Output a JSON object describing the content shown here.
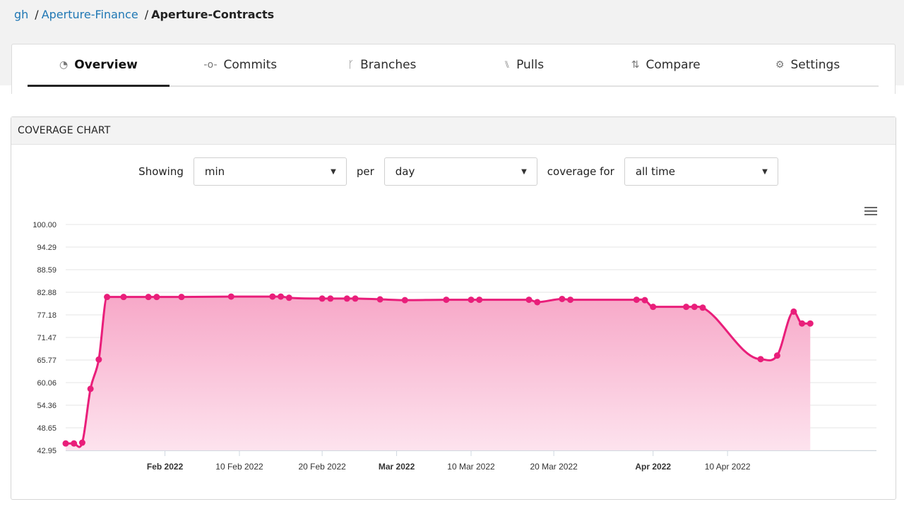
{
  "breadcrumb": {
    "items": [
      "gh",
      "Aperture-Finance"
    ],
    "current": "Aperture-Contracts",
    "separator": "/"
  },
  "tabs": [
    {
      "label": "Overview",
      "icon": "dashboard-icon",
      "glyph": "◔",
      "active": true
    },
    {
      "label": "Commits",
      "icon": "commit-icon",
      "glyph": "-o-",
      "active": false
    },
    {
      "label": "Branches",
      "icon": "branch-icon",
      "glyph": "ᚴ",
      "active": false
    },
    {
      "label": "Pulls",
      "icon": "pull-request-icon",
      "glyph": "⑊",
      "active": false
    },
    {
      "label": "Compare",
      "icon": "compare-icon",
      "glyph": "⇅",
      "active": false
    },
    {
      "label": "Settings",
      "icon": "gear-icon",
      "glyph": "⚙",
      "active": false
    }
  ],
  "panel": {
    "title": "COVERAGE CHART"
  },
  "controls": {
    "showing_label": "Showing",
    "metric_value": "min",
    "per_label": "per",
    "interval_value": "day",
    "coverage_label": "coverage for",
    "range_value": "all time"
  },
  "colors": {
    "line": "#e91e7a",
    "fill_top": "#f7a8c8",
    "fill_bottom": "#fde3ee",
    "link": "#1f77b4"
  },
  "chart_data": {
    "type": "area",
    "title": "",
    "xlabel": "",
    "ylabel": "",
    "ylim": [
      42.95,
      100.0
    ],
    "yticks": [
      "100.00",
      "94.29",
      "88.59",
      "82.88",
      "77.18",
      "71.47",
      "65.77",
      "60.06",
      "54.36",
      "48.65",
      "42.95"
    ],
    "xlim": [
      "2022-01-20",
      "2022-04-28"
    ],
    "xticks": [
      {
        "date": "2022-02-01",
        "label": "Feb 2022",
        "bold": true
      },
      {
        "date": "2022-02-10",
        "label": "10 Feb 2022",
        "bold": false
      },
      {
        "date": "2022-02-20",
        "label": "20 Feb 2022",
        "bold": false
      },
      {
        "date": "2022-03-01",
        "label": "Mar 2022",
        "bold": true
      },
      {
        "date": "2022-03-10",
        "label": "10 Mar 2022",
        "bold": false
      },
      {
        "date": "2022-03-20",
        "label": "20 Mar 2022",
        "bold": false
      },
      {
        "date": "2022-04-01",
        "label": "Apr 2022",
        "bold": true
      },
      {
        "date": "2022-04-10",
        "label": "10 Apr 2022",
        "bold": false
      }
    ],
    "grid": true,
    "series": [
      {
        "points": [
          {
            "x": "2022-01-20",
            "y": 44.7
          },
          {
            "x": "2022-01-21",
            "y": 44.7
          },
          {
            "x": "2022-01-22",
            "y": 44.9
          },
          {
            "x": "2022-01-23",
            "y": 58.5
          },
          {
            "x": "2022-01-24",
            "y": 65.9
          },
          {
            "x": "2022-01-25",
            "y": 81.7
          },
          {
            "x": "2022-01-27",
            "y": 81.7
          },
          {
            "x": "2022-01-30",
            "y": 81.7
          },
          {
            "x": "2022-01-31",
            "y": 81.7
          },
          {
            "x": "2022-02-03",
            "y": 81.7
          },
          {
            "x": "2022-02-09",
            "y": 81.8
          },
          {
            "x": "2022-02-14",
            "y": 81.8
          },
          {
            "x": "2022-02-15",
            "y": 81.8
          },
          {
            "x": "2022-02-16",
            "y": 81.5
          },
          {
            "x": "2022-02-20",
            "y": 81.3
          },
          {
            "x": "2022-02-21",
            "y": 81.3
          },
          {
            "x": "2022-02-23",
            "y": 81.3
          },
          {
            "x": "2022-02-24",
            "y": 81.3
          },
          {
            "x": "2022-02-27",
            "y": 81.1
          },
          {
            "x": "2022-03-02",
            "y": 80.9
          },
          {
            "x": "2022-03-07",
            "y": 81.0
          },
          {
            "x": "2022-03-10",
            "y": 81.0
          },
          {
            "x": "2022-03-11",
            "y": 81.0
          },
          {
            "x": "2022-03-17",
            "y": 81.0
          },
          {
            "x": "2022-03-18",
            "y": 80.4
          },
          {
            "x": "2022-03-21",
            "y": 81.2
          },
          {
            "x": "2022-03-22",
            "y": 81.0
          },
          {
            "x": "2022-03-30",
            "y": 81.0
          },
          {
            "x": "2022-03-31",
            "y": 80.9
          },
          {
            "x": "2022-04-01",
            "y": 79.2
          },
          {
            "x": "2022-04-05",
            "y": 79.2
          },
          {
            "x": "2022-04-06",
            "y": 79.2
          },
          {
            "x": "2022-04-07",
            "y": 79.0
          },
          {
            "x": "2022-04-14",
            "y": 66.0
          },
          {
            "x": "2022-04-16",
            "y": 66.9
          },
          {
            "x": "2022-04-18",
            "y": 78.0
          },
          {
            "x": "2022-04-19",
            "y": 75.0
          },
          {
            "x": "2022-04-20",
            "y": 75.0
          }
        ]
      }
    ]
  }
}
